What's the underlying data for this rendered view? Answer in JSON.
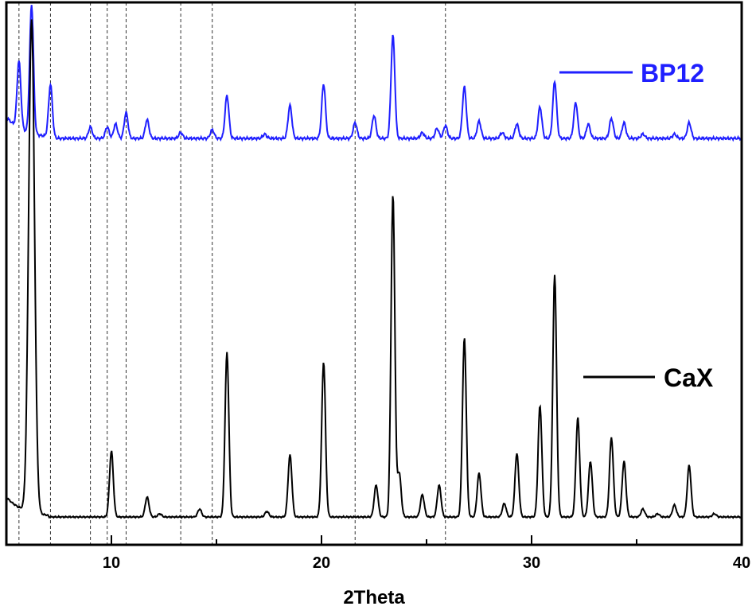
{
  "chart_data": {
    "type": "line",
    "xlabel": "2Theta",
    "ylabel": "",
    "xlim": [
      5,
      40
    ],
    "x_ticks": [
      10,
      20,
      30,
      40
    ],
    "y_ticks_shown": false,
    "grid": false,
    "reference_lines_x": [
      5.6,
      7.1,
      9.0,
      9.8,
      10.7,
      13.3,
      14.8,
      21.6,
      25.9
    ],
    "legend": [
      {
        "name": "BP12",
        "color": "#1f1fff",
        "placement": "top-right"
      },
      {
        "name": "CaX",
        "color": "#000000",
        "placement": "right"
      }
    ],
    "series": [
      {
        "name": "BP12",
        "color": "#1f1fff",
        "baseline": 5,
        "peaks": [
          {
            "x": 5.6,
            "y": 47
          },
          {
            "x": 6.2,
            "y": 90
          },
          {
            "x": 7.1,
            "y": 38
          },
          {
            "x": 9.0,
            "y": 8
          },
          {
            "x": 9.8,
            "y": 8
          },
          {
            "x": 10.2,
            "y": 10
          },
          {
            "x": 10.7,
            "y": 18
          },
          {
            "x": 11.7,
            "y": 13
          },
          {
            "x": 13.3,
            "y": 4
          },
          {
            "x": 14.8,
            "y": 6
          },
          {
            "x": 15.5,
            "y": 30
          },
          {
            "x": 17.3,
            "y": 3
          },
          {
            "x": 18.5,
            "y": 23
          },
          {
            "x": 20.1,
            "y": 38
          },
          {
            "x": 21.6,
            "y": 11
          },
          {
            "x": 22.5,
            "y": 16
          },
          {
            "x": 23.4,
            "y": 72
          },
          {
            "x": 24.8,
            "y": 4
          },
          {
            "x": 25.5,
            "y": 7
          },
          {
            "x": 25.9,
            "y": 9
          },
          {
            "x": 26.8,
            "y": 36
          },
          {
            "x": 27.5,
            "y": 12
          },
          {
            "x": 28.6,
            "y": 4
          },
          {
            "x": 29.3,
            "y": 10
          },
          {
            "x": 30.4,
            "y": 22
          },
          {
            "x": 31.1,
            "y": 40
          },
          {
            "x": 32.1,
            "y": 25
          },
          {
            "x": 32.7,
            "y": 10
          },
          {
            "x": 33.8,
            "y": 14
          },
          {
            "x": 34.4,
            "y": 11
          },
          {
            "x": 35.3,
            "y": 3
          },
          {
            "x": 36.8,
            "y": 3
          },
          {
            "x": 37.5,
            "y": 11
          }
        ]
      },
      {
        "name": "CaX",
        "color": "#000000",
        "baseline": 5,
        "peaks": [
          {
            "x": 6.2,
            "y": 620
          },
          {
            "x": 10.0,
            "y": 83
          },
          {
            "x": 11.7,
            "y": 25
          },
          {
            "x": 12.3,
            "y": 4
          },
          {
            "x": 14.2,
            "y": 10
          },
          {
            "x": 15.5,
            "y": 207
          },
          {
            "x": 17.4,
            "y": 7
          },
          {
            "x": 18.5,
            "y": 78
          },
          {
            "x": 20.1,
            "y": 195
          },
          {
            "x": 22.6,
            "y": 40
          },
          {
            "x": 23.4,
            "y": 405
          },
          {
            "x": 23.7,
            "y": 55
          },
          {
            "x": 24.8,
            "y": 28
          },
          {
            "x": 25.6,
            "y": 40
          },
          {
            "x": 26.8,
            "y": 225
          },
          {
            "x": 27.5,
            "y": 55
          },
          {
            "x": 28.7,
            "y": 17
          },
          {
            "x": 29.3,
            "y": 80
          },
          {
            "x": 30.4,
            "y": 140
          },
          {
            "x": 31.1,
            "y": 305
          },
          {
            "x": 32.2,
            "y": 125
          },
          {
            "x": 32.8,
            "y": 70
          },
          {
            "x": 33.8,
            "y": 100
          },
          {
            "x": 34.4,
            "y": 70
          },
          {
            "x": 35.3,
            "y": 10
          },
          {
            "x": 36.0,
            "y": 4
          },
          {
            "x": 36.8,
            "y": 15
          },
          {
            "x": 37.5,
            "y": 65
          },
          {
            "x": 38.7,
            "y": 4
          }
        ]
      }
    ]
  }
}
